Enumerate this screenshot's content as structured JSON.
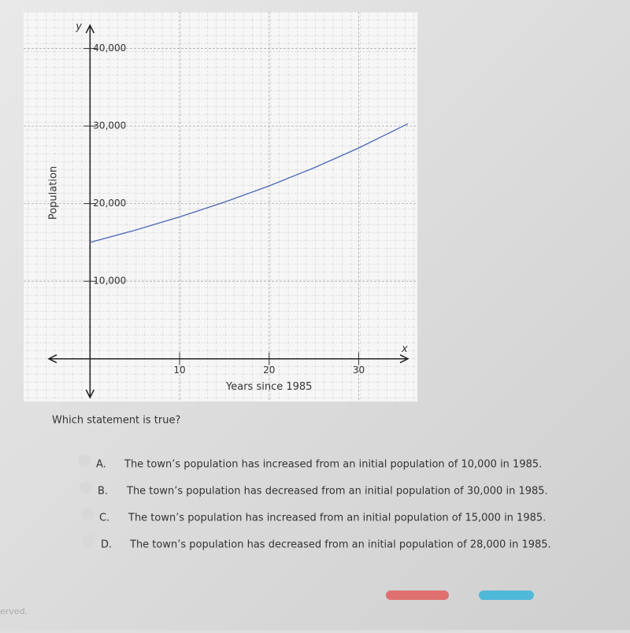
{
  "chart_data": {
    "type": "line",
    "x_label": "Years since 1985",
    "y_label": "Population",
    "x_axis_name": "x",
    "y_axis_name": "y",
    "xlim": [
      -4.6,
      35.5
    ],
    "ylim": [
      -5000,
      43000
    ],
    "xticks": [
      10,
      20,
      30
    ],
    "yticks": [
      {
        "value": 10000,
        "label": "10,000"
      },
      {
        "value": 20000,
        "label": "20,000"
      },
      {
        "value": 30000,
        "label": "30,000"
      },
      {
        "value": 40000,
        "label": "40,000"
      }
    ],
    "grid": true,
    "series": [
      {
        "color": "#4a68b8",
        "x": [
          0,
          5,
          10,
          15,
          20,
          25,
          30,
          35.5
        ],
        "values": [
          15000,
          16561,
          18285,
          20190,
          22289,
          24609,
          27170,
          30300
        ]
      }
    ]
  },
  "question": "Which statement is true?",
  "options": [
    {
      "letter": "A.",
      "text": "The town’s population has increased from an initial population of 10,000 in 1985."
    },
    {
      "letter": "B.",
      "text": "The town’s population has decreased from an initial population of 30,000 in 1985."
    },
    {
      "letter": "C.",
      "text": "The town’s population has increased from an initial population of 15,000 in 1985."
    },
    {
      "letter": "D.",
      "text": "The town’s population has decreased from an initial population of 28,000 in 1985."
    }
  ],
  "footer": "erved."
}
